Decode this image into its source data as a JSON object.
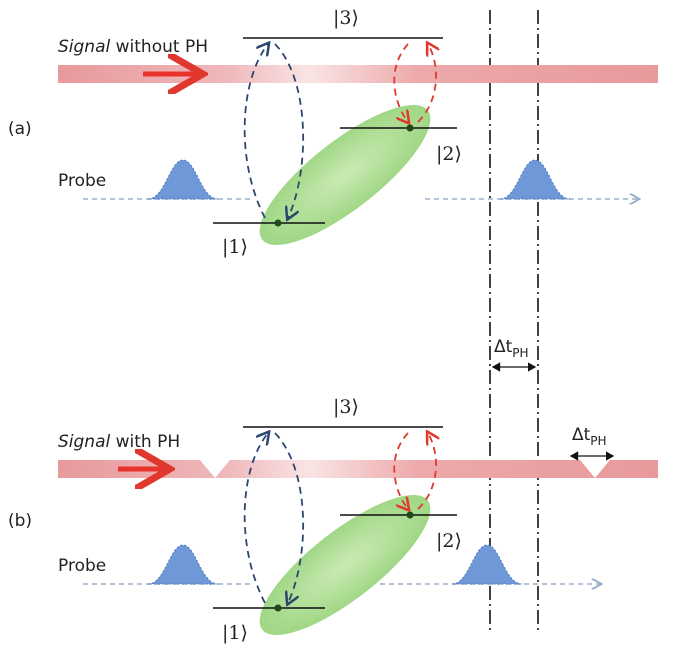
{
  "panels": [
    {
      "label": "(a)",
      "signal": {
        "emphasis": "Signal",
        "rest": "without PH"
      },
      "probe": "Probe",
      "levels": [
        "|3⟩",
        "|2⟩",
        "|1⟩"
      ]
    },
    {
      "label": "(b)",
      "signal": {
        "emphasis": "Signal",
        "rest": "with PH"
      },
      "probe": "Probe",
      "levels": [
        "|3⟩",
        "|2⟩",
        "|1⟩"
      ]
    }
  ],
  "delays": [
    {
      "symbol": "Δt",
      "subscript": "PH"
    },
    {
      "symbol": "Δt",
      "subscript": "PH"
    }
  ]
}
